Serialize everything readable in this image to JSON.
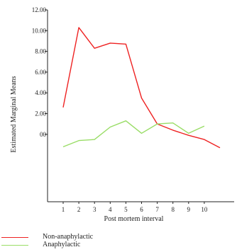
{
  "chart_data": {
    "type": "line",
    "xlabel": "Post mortem interval",
    "ylabel": "Estimated Marginal Means",
    "x_ticks": [
      "1",
      "2",
      "3",
      "4",
      "5",
      "6",
      "7",
      "8",
      "9",
      "10"
    ],
    "y_ticks": [
      "12.00",
      "10.00",
      "8.00",
      "6.00",
      "4.00",
      "2.00",
      "00"
    ],
    "x": [
      1,
      2,
      3,
      4,
      5,
      6,
      7,
      8,
      9,
      10,
      11,
      12
    ],
    "ylim": [
      -6.5,
      12
    ],
    "grid": false,
    "legend_position": "bottom-left",
    "series": [
      {
        "name": "Non-anaphylactic",
        "color": "#ee2222",
        "values": [
          2.6,
          10.3,
          8.3,
          8.8,
          8.7,
          3.5,
          1.0,
          0.4,
          -0.1,
          -0.5,
          -1.3,
          null
        ]
      },
      {
        "name": "Anaphylactic",
        "color": "#99dd66",
        "values": [
          -1.2,
          -0.6,
          -0.5,
          0.7,
          1.3,
          0.1,
          1.0,
          1.1,
          0.1,
          0.8,
          null,
          null
        ]
      }
    ]
  }
}
